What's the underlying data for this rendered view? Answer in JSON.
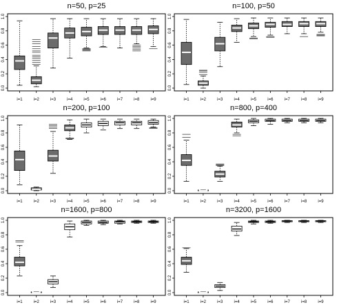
{
  "chart_data": [
    {
      "type": "boxplot",
      "title": "n=50, p=25",
      "ylim": [
        0,
        1
      ],
      "yticks": [
        "0.0",
        "0.2",
        "0.4",
        "0.6",
        "0.8",
        "1.0"
      ],
      "categories": [
        "i=1",
        "i=2",
        "i=3",
        "i=4",
        "i=5",
        "i=6",
        "i=7",
        "i=8",
        "i=9"
      ],
      "boxes": [
        {
          "fill": "dark",
          "wl": 0.04,
          "q1": 0.26,
          "med": 0.38,
          "q3": 0.45,
          "wh": 0.94,
          "out": []
        },
        {
          "fill": "dark",
          "wl": 0.02,
          "q1": 0.06,
          "med": 0.11,
          "q3": 0.16,
          "wh": 0.31,
          "out": [
            0.33,
            0.36,
            0.39,
            0.42,
            0.44,
            0.46,
            0.5,
            0.52,
            0.55,
            0.58,
            0.62,
            0.65,
            0.68
          ]
        },
        {
          "fill": "dark",
          "wl": 0.28,
          "q1": 0.56,
          "med": 0.7,
          "q3": 0.77,
          "wh": 0.97,
          "out": []
        },
        {
          "fill": "dark",
          "wl": 0.42,
          "q1": 0.7,
          "med": 0.77,
          "q3": 0.84,
          "wh": 0.97,
          "out": []
        },
        {
          "fill": "dark",
          "wl": 0.56,
          "q1": 0.73,
          "med": 0.79,
          "q3": 0.85,
          "wh": 0.97,
          "out": [
            0.52,
            0.53,
            0.54,
            0.55
          ]
        },
        {
          "fill": "dark",
          "wl": 0.58,
          "q1": 0.75,
          "med": 0.81,
          "q3": 0.86,
          "wh": 0.97,
          "out": [
            0.57
          ]
        },
        {
          "fill": "dark",
          "wl": 0.56,
          "q1": 0.75,
          "med": 0.81,
          "q3": 0.86,
          "wh": 0.97,
          "out": []
        },
        {
          "fill": "dark",
          "wl": 0.62,
          "q1": 0.75,
          "med": 0.81,
          "q3": 0.86,
          "wh": 0.97,
          "out": [
            0.52,
            0.54,
            0.56,
            0.58,
            0.6
          ]
        },
        {
          "fill": "dark",
          "wl": 0.58,
          "q1": 0.76,
          "med": 0.82,
          "q3": 0.87,
          "wh": 0.97,
          "out": [
            0.55
          ]
        }
      ]
    },
    {
      "type": "boxplot",
      "title": "n=100, p=50",
      "ylim": [
        0,
        1
      ],
      "yticks": [
        "0.0",
        "0.2",
        "0.4",
        "0.6",
        "0.8",
        "1.0"
      ],
      "categories": [
        "i=1",
        "i=2",
        "i=3",
        "i=4",
        "i=5",
        "i=6",
        "i=7",
        "i=8",
        "i=9"
      ],
      "boxes": [
        {
          "fill": "dark",
          "wl": 0.05,
          "q1": 0.33,
          "med": 0.5,
          "q3": 0.64,
          "wh": 0.96,
          "out": []
        },
        {
          "fill": "dark",
          "wl": 0.0,
          "q1": 0.04,
          "med": 0.07,
          "q3": 0.1,
          "wh": 0.17,
          "out": [
            0.19,
            0.22,
            0.24,
            0.25
          ]
        },
        {
          "fill": "dark",
          "wl": 0.3,
          "q1": 0.52,
          "med": 0.62,
          "q3": 0.71,
          "wh": 0.92,
          "out": []
        },
        {
          "fill": "dark",
          "wl": 0.64,
          "q1": 0.79,
          "med": 0.84,
          "q3": 0.88,
          "wh": 0.97,
          "out": []
        },
        {
          "fill": "dark",
          "wl": 0.72,
          "q1": 0.83,
          "med": 0.87,
          "q3": 0.91,
          "wh": 0.98,
          "out": [
            0.69,
            0.7
          ]
        },
        {
          "fill": "dark",
          "wl": 0.74,
          "q1": 0.85,
          "med": 0.89,
          "q3": 0.92,
          "wh": 0.98,
          "out": [
            0.71,
            0.72
          ]
        },
        {
          "fill": "dark",
          "wl": 0.76,
          "q1": 0.86,
          "med": 0.89,
          "q3": 0.93,
          "wh": 0.98,
          "out": []
        },
        {
          "fill": "dark",
          "wl": 0.76,
          "q1": 0.86,
          "med": 0.9,
          "q3": 0.93,
          "wh": 0.98,
          "out": [
            0.72
          ]
        },
        {
          "fill": "dark",
          "wl": 0.78,
          "q1": 0.86,
          "med": 0.9,
          "q3": 0.93,
          "wh": 0.98,
          "out": [
            0.73,
            0.74,
            0.75
          ]
        }
      ]
    },
    {
      "type": "boxplot",
      "title": "n=200, p=100",
      "ylim": [
        0,
        1
      ],
      "yticks": [
        "0.0",
        "0.2",
        "0.4",
        "0.6",
        "0.8",
        "1.0"
      ],
      "categories": [
        "i=1",
        "i=2",
        "i=3",
        "i=4",
        "i=5",
        "i=6",
        "i=7",
        "i=8",
        "i=9"
      ],
      "boxes": [
        {
          "fill": "dark",
          "wl": 0.08,
          "q1": 0.28,
          "med": 0.43,
          "q3": 0.55,
          "wh": 0.91,
          "out": []
        },
        {
          "fill": "dark",
          "wl": 0.0,
          "q1": 0.01,
          "med": 0.02,
          "q3": 0.04,
          "wh": 0.05,
          "out": []
        },
        {
          "fill": "dark",
          "wl": 0.24,
          "q1": 0.41,
          "med": 0.48,
          "q3": 0.56,
          "wh": 0.82,
          "out": [
            0.86,
            0.88,
            0.9,
            0.92
          ]
        },
        {
          "fill": "dark",
          "wl": 0.71,
          "q1": 0.83,
          "med": 0.87,
          "q3": 0.91,
          "wh": 0.98,
          "out": [
            0.72,
            0.73
          ]
        },
        {
          "fill": "light",
          "wl": 0.8,
          "q1": 0.88,
          "med": 0.91,
          "q3": 0.94,
          "wh": 0.99,
          "out": []
        },
        {
          "fill": "light",
          "wl": 0.84,
          "q1": 0.9,
          "med": 0.93,
          "q3": 0.96,
          "wh": 0.99,
          "out": []
        },
        {
          "fill": "light",
          "wl": 0.86,
          "q1": 0.91,
          "med": 0.94,
          "q3": 0.96,
          "wh": 0.99,
          "out": []
        },
        {
          "fill": "light",
          "wl": 0.86,
          "q1": 0.91,
          "med": 0.94,
          "q3": 0.96,
          "wh": 0.99,
          "out": []
        },
        {
          "fill": "light",
          "wl": 0.88,
          "q1": 0.92,
          "med": 0.94,
          "q3": 0.97,
          "wh": 0.99,
          "out": [
            0.86,
            0.87
          ]
        }
      ]
    },
    {
      "type": "boxplot",
      "title": "n=800, p=400",
      "ylim": [
        0,
        1
      ],
      "yticks": [
        "0.0",
        "0.2",
        "0.4",
        "0.6",
        "0.8",
        "1.0"
      ],
      "categories": [
        "i=1",
        "i=2",
        "i=3",
        "i=4",
        "i=5",
        "i=6",
        "i=7",
        "i=8",
        "i=9"
      ],
      "boxes": [
        {
          "fill": "dark",
          "wl": 0.13,
          "q1": 0.35,
          "med": 0.42,
          "q3": 0.5,
          "wh": 0.7,
          "out": [
            0.74,
            0.78
          ]
        },
        {
          "fill": "dark",
          "wl": 0.0,
          "q1": 0.0,
          "med": 0.005,
          "q3": 0.01,
          "wh": 0.015,
          "out": []
        },
        {
          "fill": "dark",
          "wl": 0.13,
          "q1": 0.19,
          "med": 0.23,
          "q3": 0.27,
          "wh": 0.34,
          "out": [
            0.35,
            0.36,
            0.37
          ]
        },
        {
          "fill": "dark",
          "wl": 0.8,
          "q1": 0.88,
          "med": 0.91,
          "q3": 0.95,
          "wh": 0.99,
          "out": [
            0.76,
            0.78
          ]
        },
        {
          "fill": "light",
          "wl": 0.9,
          "q1": 0.94,
          "med": 0.96,
          "q3": 0.98,
          "wh": 1.0,
          "out": []
        },
        {
          "fill": "light",
          "wl": 0.92,
          "q1": 0.96,
          "med": 0.97,
          "q3": 0.99,
          "wh": 1.0,
          "out": []
        },
        {
          "fill": "light",
          "wl": 0.94,
          "q1": 0.96,
          "med": 0.97,
          "q3": 0.99,
          "wh": 1.0,
          "out": []
        },
        {
          "fill": "light",
          "wl": 0.94,
          "q1": 0.96,
          "med": 0.97,
          "q3": 0.99,
          "wh": 1.0,
          "out": []
        },
        {
          "fill": "light",
          "wl": 0.94,
          "q1": 0.96,
          "med": 0.97,
          "q3": 0.99,
          "wh": 1.0,
          "out": []
        }
      ]
    },
    {
      "type": "boxplot",
      "title": "n=1600, p=800",
      "ylim": [
        0,
        1
      ],
      "yticks": [
        "0.0",
        "0.2",
        "0.4",
        "0.6",
        "0.8",
        "1.0"
      ],
      "categories": [
        "i=1",
        "i=2",
        "i=3",
        "i=4",
        "i=5",
        "i=6",
        "i=7",
        "i=8",
        "i=9"
      ],
      "boxes": [
        {
          "fill": "dark",
          "wl": 0.23,
          "q1": 0.37,
          "med": 0.42,
          "q3": 0.49,
          "wh": 0.65,
          "out": [
            0.7,
            0.72
          ]
        },
        {
          "fill": "dark",
          "wl": 0.0,
          "q1": 0.0,
          "med": 0.005,
          "q3": 0.01,
          "wh": 0.015,
          "out": []
        },
        {
          "fill": "light",
          "wl": 0.07,
          "q1": 0.12,
          "med": 0.15,
          "q3": 0.18,
          "wh": 0.23,
          "out": []
        },
        {
          "fill": "light",
          "wl": 0.77,
          "q1": 0.87,
          "med": 0.91,
          "q3": 0.95,
          "wh": 0.99,
          "out": []
        },
        {
          "fill": "light",
          "wl": 0.93,
          "q1": 0.95,
          "med": 0.97,
          "q3": 0.99,
          "wh": 1.0,
          "out": []
        },
        {
          "fill": "light",
          "wl": 0.94,
          "q1": 0.96,
          "med": 0.97,
          "q3": 0.99,
          "wh": 1.0,
          "out": []
        },
        {
          "fill": "light",
          "wl": 0.95,
          "q1": 0.96,
          "med": 0.98,
          "q3": 0.99,
          "wh": 1.0,
          "out": []
        },
        {
          "fill": "light",
          "wl": 0.96,
          "q1": 0.97,
          "med": 0.98,
          "q3": 0.99,
          "wh": 1.0,
          "out": []
        },
        {
          "fill": "light",
          "wl": 0.96,
          "q1": 0.97,
          "med": 0.98,
          "q3": 0.99,
          "wh": 1.0,
          "out": []
        }
      ]
    },
    {
      "type": "boxplot",
      "title": "n=3200, p=1600",
      "ylim": [
        0,
        1
      ],
      "yticks": [
        "0.0",
        "0.2",
        "0.4",
        "0.6",
        "0.8",
        "1.0"
      ],
      "categories": [
        "i=1",
        "i=2",
        "i=3",
        "i=4",
        "i=5",
        "i=6",
        "i=7",
        "i=8",
        "i=9"
      ],
      "boxes": [
        {
          "fill": "dark",
          "wl": 0.28,
          "q1": 0.39,
          "med": 0.44,
          "q3": 0.49,
          "wh": 0.61,
          "out": [
            0.62
          ]
        },
        {
          "fill": "dark",
          "wl": 0.0,
          "q1": 0.0,
          "med": 0.005,
          "q3": 0.01,
          "wh": 0.015,
          "out": []
        },
        {
          "fill": "light",
          "wl": 0.03,
          "q1": 0.07,
          "med": 0.09,
          "q3": 0.11,
          "wh": 0.14,
          "out": []
        },
        {
          "fill": "light",
          "wl": 0.79,
          "q1": 0.85,
          "med": 0.88,
          "q3": 0.92,
          "wh": 0.97,
          "out": []
        },
        {
          "fill": "light",
          "wl": 0.95,
          "q1": 0.97,
          "med": 0.98,
          "q3": 0.99,
          "wh": 1.0,
          "out": []
        },
        {
          "fill": "light",
          "wl": 0.96,
          "q1": 0.97,
          "med": 0.98,
          "q3": 0.99,
          "wh": 1.0,
          "out": []
        },
        {
          "fill": "light",
          "wl": 0.97,
          "q1": 0.98,
          "med": 0.99,
          "q3": 0.995,
          "wh": 1.0,
          "out": []
        },
        {
          "fill": "light",
          "wl": 0.97,
          "q1": 0.98,
          "med": 0.99,
          "q3": 0.995,
          "wh": 1.0,
          "out": []
        },
        {
          "fill": "light",
          "wl": 0.97,
          "q1": 0.98,
          "med": 0.99,
          "q3": 0.995,
          "wh": 1.0,
          "out": []
        }
      ]
    }
  ],
  "colors": {
    "box_dark": "#6b6b6b",
    "box_light": "#ffffff",
    "median_dark": "#ffffff",
    "median_light": "#000000",
    "line": "#000000"
  }
}
